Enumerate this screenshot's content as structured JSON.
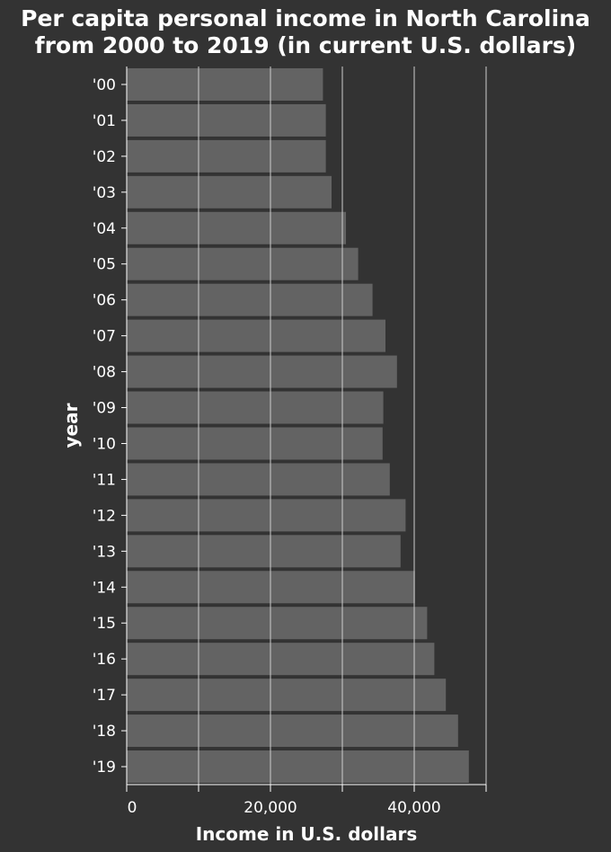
{
  "chart_data": {
    "type": "bar",
    "orientation": "horizontal",
    "title_lines": [
      "Per capita personal income in North Carolina",
      "from 2000 to 2019 (in current U.S. dollars)"
    ],
    "xlabel": "Income in U.S. dollars",
    "ylabel": "year",
    "categories": [
      "'00",
      "'01",
      "'02",
      "'03",
      "'04",
      "'05",
      "'06",
      "'07",
      "'08",
      "'09",
      "'10",
      "'11",
      "'12",
      "'13",
      "'14",
      "'15",
      "'16",
      "'17",
      "'18",
      "'19"
    ],
    "values": [
      27300,
      27700,
      27700,
      28500,
      30500,
      32200,
      34200,
      36000,
      37600,
      35700,
      35600,
      36600,
      38800,
      38100,
      40100,
      41800,
      42800,
      44400,
      46100,
      47600
    ],
    "xlim": [
      0,
      50000
    ],
    "xticks": [
      0,
      10000,
      20000,
      30000,
      40000,
      50000
    ],
    "xtick_labels": [
      "0",
      "",
      "20,000",
      "",
      "40,000",
      ""
    ],
    "grid": "vertical",
    "colors": {
      "background": "#333333",
      "bar": "#636363",
      "text": "#ffffff",
      "grid": "#cccccc"
    }
  }
}
